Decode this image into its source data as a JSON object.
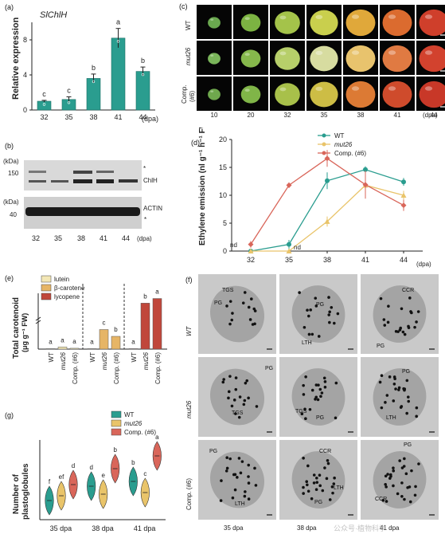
{
  "colors": {
    "wt": "#2a9d8f",
    "mut26": "#e9c46a",
    "comp": "#d9665a",
    "lutein": "#f3e7b5",
    "bcarotene": "#e6b566",
    "lycopene": "#c0473b"
  },
  "panel_a": {
    "letter": "(a)",
    "gene": "SlChlH",
    "xunit": "(dpa)"
  },
  "panel_b": {
    "letter": "(b)",
    "kda_top": "(kDa)",
    "kda_bottom": "(kDa)",
    "mw_150": "150",
    "mw_40": "40",
    "band_top": "ChlH",
    "band_bottom": "ACTIN",
    "star": "*",
    "lanes": [
      "32",
      "35",
      "38",
      "41",
      "44"
    ],
    "xunit": "(dpa)"
  },
  "panel_c": {
    "letter": "(c)",
    "rows": [
      "WT",
      "mut26",
      "Comp.\n(#6)"
    ],
    "row_wt": "WT",
    "row_mut": "mut26",
    "row_comp": "Comp.",
    "row_comp2": "(#6)",
    "days": [
      "10",
      "20",
      "32",
      "35",
      "38",
      "41",
      "44"
    ],
    "xunit": "(dpa)",
    "fruit_colors": [
      "#6aa84f",
      "#7cb342",
      "#a4c34a",
      "#c9cf4d",
      "#e0a83a",
      "#db6b2f",
      "#cf3f2b"
    ],
    "fruit_colors_mut": [
      "#7ab55a",
      "#86b84c",
      "#b7cf6a",
      "#d7dca0",
      "#e8c36d",
      "#e07a42",
      "#d2422e"
    ],
    "fruit_colors_comp": [
      "#6fa84d",
      "#80b548",
      "#a8c04a",
      "#cdbd45",
      "#dc7a34",
      "#cf4b2c",
      "#c83828"
    ]
  },
  "panel_d": {
    "letter": "(d)",
    "nd_label": "nd"
  },
  "panel_e": {
    "letter": "(e)",
    "ylabel_line1": "Total carotenoid",
    "ylabel_line2": "(μg g⁻¹ FW)",
    "legend": [
      "lutein",
      "β-carotene",
      "lycopene"
    ],
    "groups": [
      "WT",
      "mut26",
      "Comp. (#6)"
    ]
  },
  "panel_f": {
    "letter": "(f)",
    "rows": [
      "WT",
      "mut26",
      "Comp. (#6)"
    ],
    "cols": [
      "35 dpa",
      "38 dpa",
      "41 dpa"
    ],
    "labels": [
      [
        "TGS",
        "PG",
        "PG",
        "LTH",
        "CCR",
        "PG"
      ],
      [
        "PG",
        "TGS",
        "TGS",
        "PG",
        "PG",
        "LTH"
      ],
      [
        "PG",
        "LTH",
        "CCR",
        "LTH",
        "PG",
        "PG",
        "CCR"
      ]
    ],
    "watermark": "公众号·植物科学"
  },
  "panel_g": {
    "letter": "(g)",
    "ylabel_line1": "Number of",
    "ylabel_line2": "plastoglobules",
    "legend": [
      "WT",
      "mut26",
      "Comp. (#6)"
    ],
    "groups": [
      "35 dpa",
      "38 dpa",
      "41 dpa"
    ]
  },
  "chart_data": [
    {
      "type": "bar",
      "panel": "a",
      "title": "SlChlH",
      "ylabel": "Relative expression",
      "xlabel": "(dpa)",
      "categories": [
        "32",
        "35",
        "38",
        "41",
        "44"
      ],
      "values": [
        1.0,
        1.2,
        3.6,
        8.2,
        4.4
      ],
      "errors": [
        0.1,
        0.3,
        0.5,
        1.1,
        0.5
      ],
      "letters": [
        "c",
        "c",
        "b",
        "a",
        "b"
      ],
      "ylim": [
        0,
        10
      ],
      "yticks": [
        0,
        4,
        8
      ]
    },
    {
      "type": "line",
      "panel": "d",
      "ylabel": "Ethylene emission (nl g⁻¹ h⁻¹ FW)",
      "xlabel": "(dpa)",
      "x": [
        "32",
        "35",
        "38",
        "41",
        "44"
      ],
      "ylim": [
        0,
        20
      ],
      "yticks": [
        0,
        5,
        10,
        15,
        20
      ],
      "series": [
        {
          "name": "WT",
          "values": [
            0,
            1.2,
            12.6,
            14.6,
            12.4
          ],
          "errors": [
            0.2,
            0.8,
            1.5,
            0.6,
            0.7
          ]
        },
        {
          "name": "mut26",
          "values": [
            0,
            0,
            5.3,
            11.8,
            10.0
          ],
          "errors": [
            0.2,
            0.2,
            0.9,
            1.2,
            0.8
          ]
        },
        {
          "name": "Comp. (#6)",
          "values": [
            1.2,
            11.8,
            16.6,
            11.9,
            8.2
          ],
          "errors": [
            0.6,
            0.5,
            1.5,
            2.5,
            1.0
          ]
        }
      ],
      "annotations": [
        "nd"
      ]
    },
    {
      "type": "bar",
      "panel": "e",
      "ylabel": "Total carotenoid (μg g⁻¹ FW)",
      "categories": [
        "WT",
        "mut26",
        "Comp. (#6)"
      ],
      "stages": [
        "35 dpa",
        "38 dpa",
        "41 dpa"
      ],
      "series": [
        {
          "name": "lutein",
          "values": [
            1,
            5,
            2
          ]
        },
        {
          "name": "β-carotene",
          "values": [
            1,
            46,
            30
          ]
        },
        {
          "name": "lycopene",
          "values": [
            1,
            330,
            410
          ]
        }
      ],
      "letters": [
        [
          "a",
          "a",
          "a"
        ],
        [
          "a",
          "c",
          "b"
        ],
        [
          "a",
          "b",
          "a"
        ]
      ]
    },
    {
      "type": "bar",
      "panel": "g",
      "subtype": "violin",
      "ylabel": "Number of plastoglobules",
      "categories": [
        "35 dpa",
        "38 dpa",
        "41 dpa"
      ],
      "series": [
        {
          "name": "WT",
          "values": [
            12,
            21,
            24
          ]
        },
        {
          "name": "mut26",
          "values": [
            15,
            16,
            17
          ]
        },
        {
          "name": "Comp. (#6)",
          "values": [
            22,
            32,
            40
          ]
        }
      ],
      "letters": [
        [
          "f",
          "ef",
          "d"
        ],
        [
          "d",
          "e",
          "b"
        ],
        [
          "b",
          "c",
          "a"
        ]
      ]
    }
  ]
}
